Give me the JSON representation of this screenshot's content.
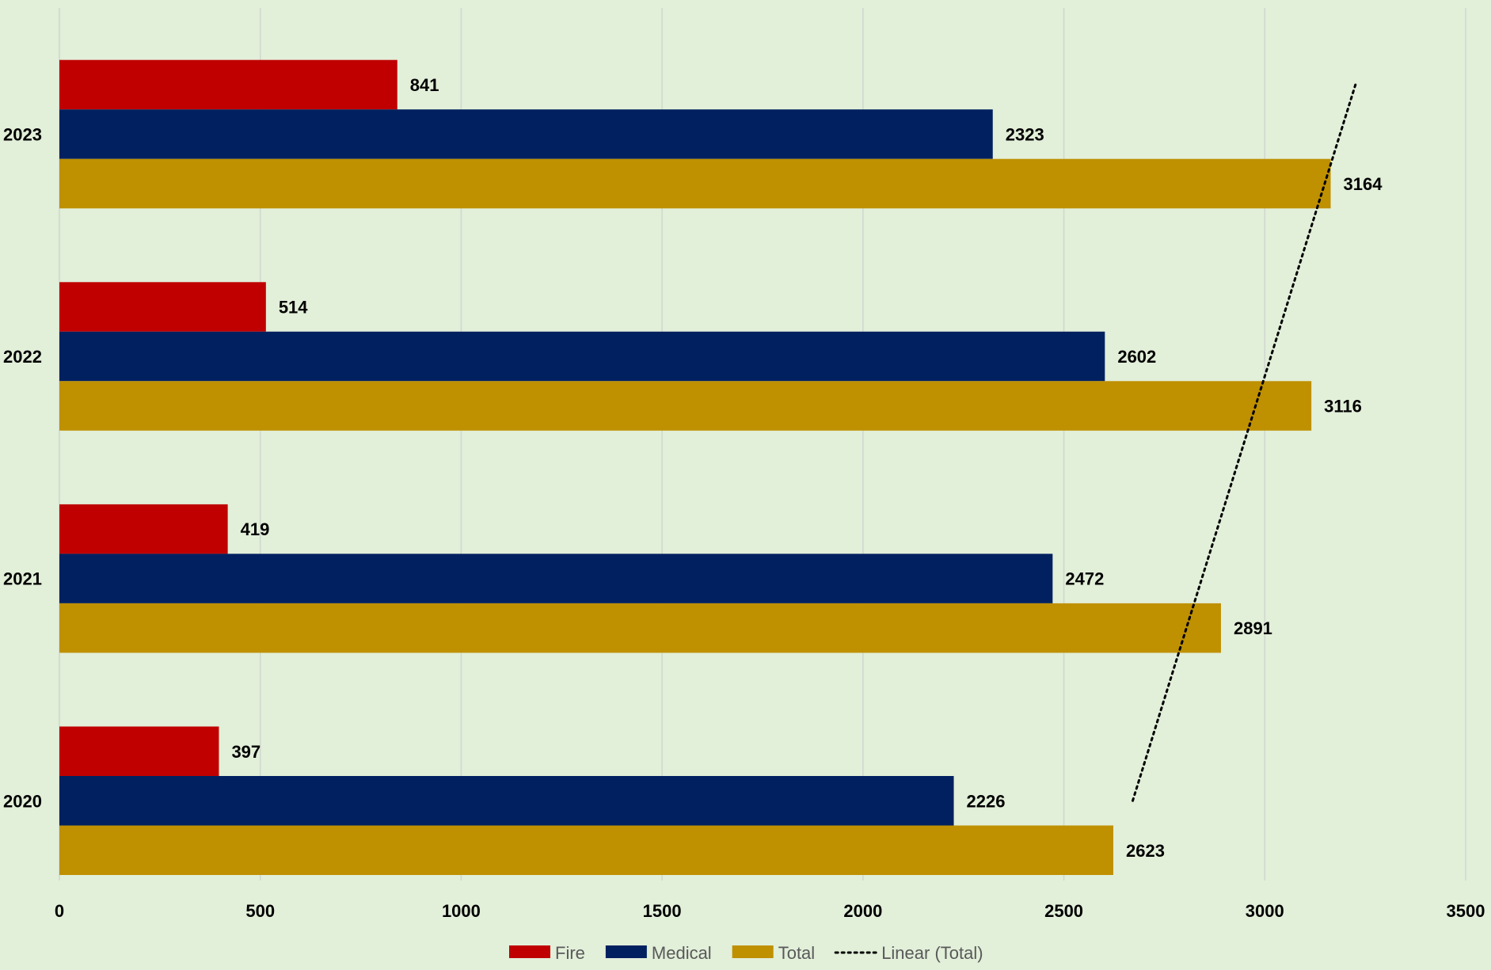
{
  "chart_data": {
    "type": "bar",
    "orientation": "horizontal",
    "categories": [
      "2020",
      "2021",
      "2022",
      "2023"
    ],
    "series": [
      {
        "name": "Fire",
        "color": "#c00000",
        "values": [
          397,
          419,
          514,
          841
        ]
      },
      {
        "name": "Medical",
        "color": "#002060",
        "values": [
          2226,
          2472,
          2602,
          2323
        ]
      },
      {
        "name": "Total",
        "color": "#bf9000",
        "values": [
          2623,
          2891,
          3116,
          3164
        ]
      }
    ],
    "trendline": {
      "name": "Linear (Total)",
      "series": "Total",
      "type": "linear",
      "style": "dotted",
      "color": "#000000"
    },
    "xlim": [
      0,
      3500
    ],
    "xticks": [
      "0",
      "500",
      "1000",
      "1500",
      "2000",
      "2500",
      "3000",
      "3500"
    ],
    "grid": "vertical",
    "legend": "bottom",
    "background": "#e2efd9"
  }
}
